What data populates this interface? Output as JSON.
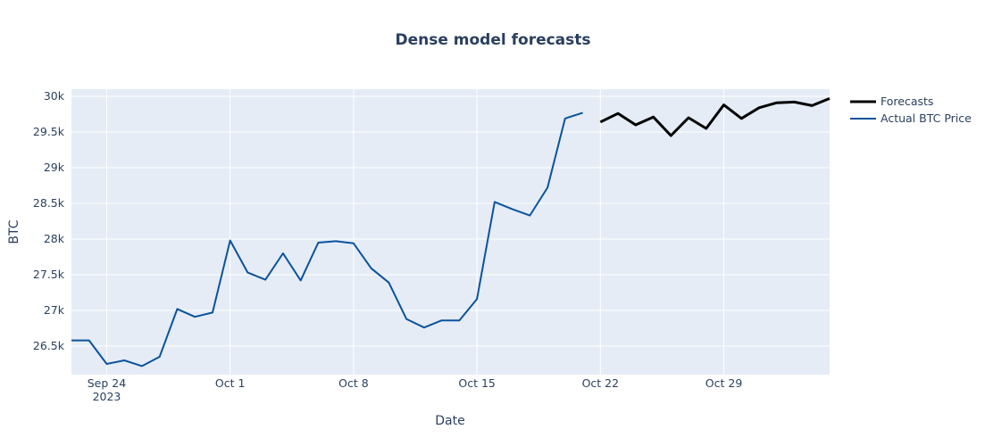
{
  "chart_data": {
    "type": "line",
    "title": "Dense model forecasts",
    "xlabel": "Date",
    "ylabel": "BTC",
    "x_range": [
      "2023-09-22",
      "2023-11-04"
    ],
    "ylim": [
      26100,
      30100
    ],
    "grid": true,
    "legend_position": "top-right outside",
    "plot_background": "#e5ecf6",
    "x_ticks": [
      {
        "date": "2023-09-24",
        "label": "Sep 24",
        "sublabel": "2023"
      },
      {
        "date": "2023-10-01",
        "label": "Oct 1"
      },
      {
        "date": "2023-10-08",
        "label": "Oct 8"
      },
      {
        "date": "2023-10-15",
        "label": "Oct 15"
      },
      {
        "date": "2023-10-22",
        "label": "Oct 22"
      },
      {
        "date": "2023-10-29",
        "label": "Oct 29"
      }
    ],
    "y_ticks": [
      {
        "value": 26500,
        "label": "26.5k"
      },
      {
        "value": 27000,
        "label": "27k"
      },
      {
        "value": 27500,
        "label": "27.5k"
      },
      {
        "value": 28000,
        "label": "28k"
      },
      {
        "value": 28500,
        "label": "28.5k"
      },
      {
        "value": 29000,
        "label": "29k"
      },
      {
        "value": 29500,
        "label": "29.5k"
      },
      {
        "value": 30000,
        "label": "30k"
      }
    ],
    "series": [
      {
        "name": "Forecasts",
        "color": "#000000",
        "x": [
          "2023-10-22",
          "2023-10-23",
          "2023-10-24",
          "2023-10-25",
          "2023-10-26",
          "2023-10-27",
          "2023-10-28",
          "2023-10-29",
          "2023-10-30",
          "2023-10-31",
          "2023-11-01",
          "2023-11-02",
          "2023-11-03",
          "2023-11-04"
        ],
        "y": [
          29640,
          29760,
          29600,
          29710,
          29450,
          29700,
          29550,
          29880,
          29690,
          29840,
          29910,
          29920,
          29870,
          29970
        ]
      },
      {
        "name": "Actual BTC Price",
        "color": "#0b539c",
        "x": [
          "2023-09-22",
          "2023-09-23",
          "2023-09-24",
          "2023-09-25",
          "2023-09-26",
          "2023-09-27",
          "2023-09-28",
          "2023-09-29",
          "2023-09-30",
          "2023-10-01",
          "2023-10-02",
          "2023-10-03",
          "2023-10-04",
          "2023-10-05",
          "2023-10-06",
          "2023-10-07",
          "2023-10-08",
          "2023-10-09",
          "2023-10-10",
          "2023-10-11",
          "2023-10-12",
          "2023-10-13",
          "2023-10-14",
          "2023-10-15",
          "2023-10-16",
          "2023-10-17",
          "2023-10-18",
          "2023-10-19",
          "2023-10-20",
          "2023-10-21"
        ],
        "y": [
          26580,
          26580,
          26250,
          26300,
          26220,
          26350,
          27020,
          26910,
          26970,
          27980,
          27530,
          27430,
          27800,
          27420,
          27950,
          27970,
          27940,
          27590,
          27390,
          26880,
          26760,
          26860,
          26860,
          27160,
          28520,
          28420,
          28330,
          28720,
          29690,
          29770
        ]
      }
    ]
  }
}
